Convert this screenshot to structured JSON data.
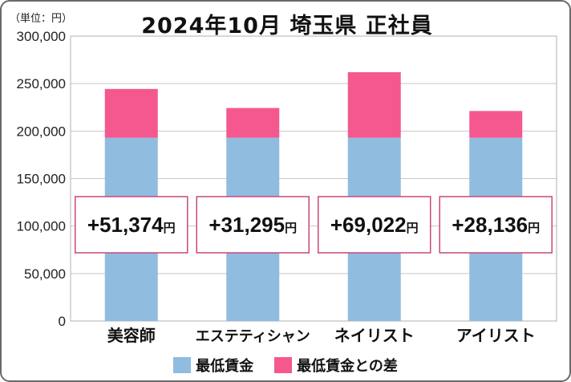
{
  "unit_note": "（単位：円）",
  "chart_data": {
    "type": "bar",
    "stacked": true,
    "title": "2024年10月 埼玉県 正社員",
    "categories": [
      "美容師",
      "エステティシャン",
      "ネイリスト",
      "アイリスト"
    ],
    "series": [
      {
        "name": "最低賃金",
        "color": "#90bce0",
        "values": [
          193000,
          193000,
          193000,
          193000
        ]
      },
      {
        "name": "最低賃金との差",
        "color": "#f4588e",
        "values": [
          51374,
          31295,
          69022,
          28136
        ]
      }
    ],
    "difference_labels": [
      {
        "main": "+51,374",
        "suffix": "円"
      },
      {
        "main": "+31,295",
        "suffix": "円"
      },
      {
        "main": "+69,022",
        "suffix": "円"
      },
      {
        "main": "+28,136",
        "suffix": "円"
      }
    ],
    "ylim": [
      0,
      300000
    ],
    "yticks": [
      0,
      50000,
      100000,
      150000,
      200000,
      250000,
      300000
    ],
    "ytick_labels": [
      "0",
      "50,000",
      "100,000",
      "150,000",
      "200,000",
      "250,000",
      "300,000"
    ],
    "grid": true,
    "legend": "bottom"
  }
}
